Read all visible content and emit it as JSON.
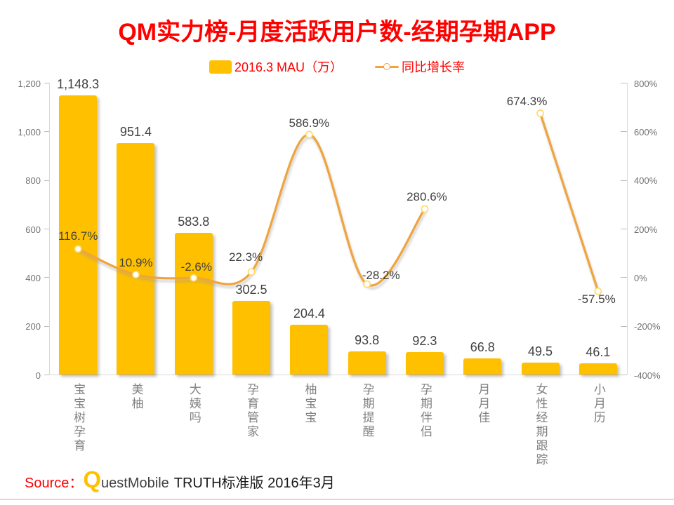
{
  "title": "QM实力榜-月度活跃用户数-经期孕期APP",
  "legend": {
    "bar_label": "2016.3 MAU（万）",
    "line_label": "同比增长率"
  },
  "footer": {
    "source_prefix": "Source：",
    "logo_q": "Q",
    "logo_rest": "uestMobile",
    "source_suffix": "TRUTH标准版 2016年3月"
  },
  "colors": {
    "accent_red": "#FF0000",
    "bar_fill": "#FFC000",
    "line_stroke": "#F0A43E",
    "marker_stroke": "#FFD966",
    "axis_line": "#D9D9D9",
    "tick_mark": "#BFBFBF",
    "axis_text": "#737373",
    "category_text": "#808080",
    "data_label_text": "#404040",
    "logo_gray": "#3F3F3F",
    "footer_black": "#1A1A1A"
  },
  "chart_data": {
    "type": "bar+line",
    "title": "QM实力榜-月度活跃用户数-经期孕期APP",
    "categories": [
      "宝宝树孕育",
      "美柚",
      "大姨吗",
      "孕育管家",
      "柚宝宝",
      "孕期提醒",
      "孕期伴侣",
      "月月佳",
      "女性经期跟踪",
      "小月历"
    ],
    "series": [
      {
        "name": "2016.3 MAU（万）",
        "type": "bar",
        "axis": "left",
        "values": [
          1148.3,
          951.4,
          583.8,
          302.5,
          204.4,
          93.8,
          92.3,
          66.8,
          49.5,
          46.1
        ],
        "labels": [
          "1,148.3",
          "951.4",
          "583.8",
          "302.5",
          "204.4",
          "93.8",
          "92.3",
          "66.8",
          "49.5",
          "46.1"
        ]
      },
      {
        "name": "同比增长率",
        "type": "line",
        "axis": "right",
        "values": [
          116.7,
          10.9,
          -2.6,
          22.3,
          586.9,
          -28.2,
          280.6,
          null,
          674.3,
          -57.5
        ],
        "labels": [
          "116.7%",
          "10.9%",
          "-2.6%",
          "22.3%",
          "586.9%",
          "-28.2%",
          "280.6%",
          null,
          "674.3%",
          "-57.5%"
        ]
      }
    ],
    "left_axis": {
      "min": 0,
      "max": 1200,
      "step": 200,
      "tick_labels": [
        "0",
        "200",
        "400",
        "600",
        "800",
        "1,000",
        "1,200"
      ]
    },
    "right_axis": {
      "min": -400,
      "max": 800,
      "step": 200,
      "tick_labels": [
        "-400%",
        "-200%",
        "0%",
        "200%",
        "400%",
        "600%",
        "800%"
      ]
    },
    "grid": false,
    "legend_position": "top",
    "smooth_line": true,
    "label_offsets": [
      [
        0,
        -18
      ],
      [
        0,
        -17
      ],
      [
        4,
        -15
      ],
      [
        -8,
        -21
      ],
      [
        0,
        -16
      ],
      [
        20,
        -12
      ],
      [
        3,
        -17
      ],
      null,
      [
        -19,
        -17
      ],
      [
        -2,
        12
      ]
    ]
  }
}
